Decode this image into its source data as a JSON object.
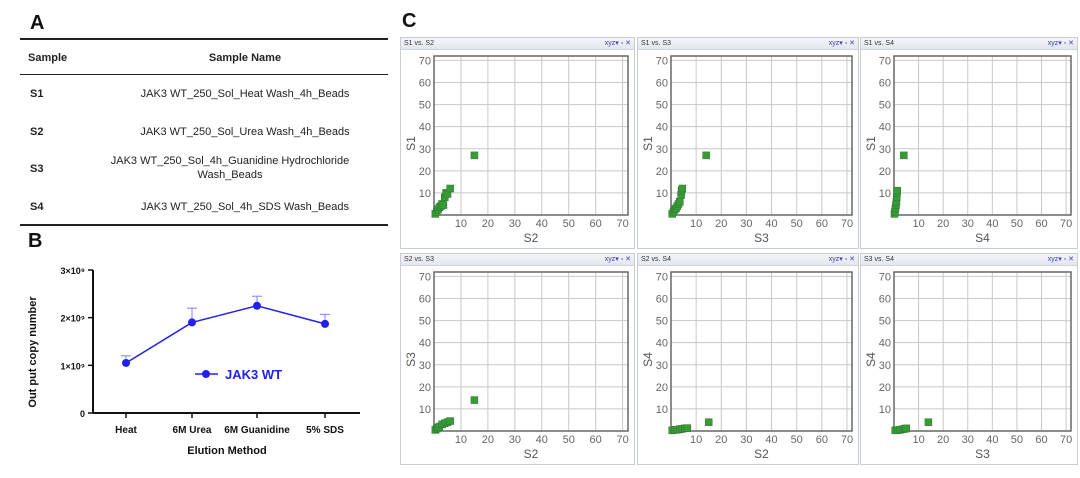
{
  "panel_labels": {
    "a": "A",
    "b": "B",
    "c": "C"
  },
  "table": {
    "headers": [
      "Sample",
      "Sample Name"
    ],
    "rows": [
      {
        "sample": "S1",
        "name": "JAK3 WT_250_Sol_Heat Wash_4h_Beads"
      },
      {
        "sample": "S2",
        "name": "JAK3 WT_250_Sol_Urea Wash_4h_Beads"
      },
      {
        "sample": "S3",
        "name": "JAK3 WT_250_Sol_4h_Guanidine Hydrochloride Wash_Beads"
      },
      {
        "sample": "S4",
        "name": "JAK3 WT_250_Sol_4h_SDS Wash_Beads"
      }
    ]
  },
  "panel_controls": {
    "xyz": "xyz▾",
    "restore": "▫",
    "close": "✕"
  },
  "colors": {
    "line": "#2020f0",
    "marker": "#3a9a3a",
    "marker_edge": "#2a7a2a",
    "grid": "#c8c8c8"
  },
  "chart_data": [
    {
      "type": "line",
      "title": "",
      "xlabel": "Elution Method",
      "ylabel": "Out put copy number",
      "categories": [
        "Heat",
        "6M Urea",
        "6M Guanidine",
        "5% SDS"
      ],
      "series": [
        {
          "name": "JAK3 WT",
          "values": [
            1050000000.0,
            1900000000.0,
            2250000000.0,
            1870000000.0
          ],
          "error_plus": [
            150000000.0,
            300000000.0,
            200000000.0,
            200000000.0
          ]
        }
      ],
      "ylim": [
        0,
        3000000000.0
      ],
      "yticks": [
        0,
        1000000000.0,
        2000000000.0,
        3000000000.0
      ],
      "ytick_labels": [
        "0",
        "1×10⁹",
        "2×10⁹",
        "3×10⁹"
      ],
      "legend": "center"
    },
    {
      "type": "scatter",
      "title": "S1 vs. S2",
      "xlabel": "S2",
      "ylabel": "S1",
      "xlim": [
        0,
        72
      ],
      "ylim": [
        0,
        72
      ],
      "ticks": [
        10,
        20,
        30,
        40,
        50,
        60,
        70
      ],
      "points": [
        [
          0.5,
          0.5
        ],
        [
          1,
          1.5
        ],
        [
          1.5,
          2.5
        ],
        [
          2,
          3.5
        ],
        [
          2.5,
          4
        ],
        [
          3,
          5
        ],
        [
          3.5,
          4.5
        ],
        [
          4,
          8
        ],
        [
          4.5,
          10
        ],
        [
          5,
          9.5
        ],
        [
          6,
          12
        ],
        [
          15,
          27
        ]
      ]
    },
    {
      "type": "scatter",
      "title": "S1 vs. S3",
      "xlabel": "S3",
      "ylabel": "S1",
      "xlim": [
        0,
        72
      ],
      "ylim": [
        0,
        72
      ],
      "ticks": [
        10,
        20,
        30,
        40,
        50,
        60,
        70
      ],
      "points": [
        [
          0.5,
          0.5
        ],
        [
          1,
          1.5
        ],
        [
          1.5,
          2.5
        ],
        [
          2,
          3
        ],
        [
          2.5,
          4
        ],
        [
          3,
          5
        ],
        [
          3.5,
          6
        ],
        [
          4,
          9
        ],
        [
          4.2,
          11
        ],
        [
          4.5,
          12
        ],
        [
          14,
          27
        ]
      ]
    },
    {
      "type": "scatter",
      "title": "S1 vs. S4",
      "xlabel": "S4",
      "ylabel": "S1",
      "xlim": [
        0,
        72
      ],
      "ylim": [
        0,
        72
      ],
      "ticks": [
        10,
        20,
        30,
        40,
        50,
        60,
        70
      ],
      "points": [
        [
          0.2,
          0.5
        ],
        [
          0.4,
          1.5
        ],
        [
          0.6,
          3
        ],
        [
          0.8,
          4.5
        ],
        [
          1,
          6
        ],
        [
          1.1,
          8
        ],
        [
          1.2,
          10
        ],
        [
          1.3,
          11
        ],
        [
          4,
          27
        ]
      ]
    },
    {
      "type": "scatter",
      "title": "S2 vs. S3",
      "xlabel": "S2",
      "ylabel": "S3",
      "xlim": [
        0,
        72
      ],
      "ylim": [
        0,
        72
      ],
      "ticks": [
        10,
        20,
        30,
        40,
        50,
        60,
        70
      ],
      "points": [
        [
          0.5,
          0.5
        ],
        [
          1,
          1
        ],
        [
          1.5,
          1.5
        ],
        [
          2,
          2
        ],
        [
          3,
          3
        ],
        [
          4,
          3.5
        ],
        [
          5,
          4
        ],
        [
          6,
          4.5
        ],
        [
          15,
          14
        ]
      ]
    },
    {
      "type": "scatter",
      "title": "S2 vs. S4",
      "xlabel": "S2",
      "ylabel": "S4",
      "xlim": [
        0,
        72
      ],
      "ylim": [
        0,
        72
      ],
      "ticks": [
        10,
        20,
        30,
        40,
        50,
        60,
        70
      ],
      "points": [
        [
          0.5,
          0.3
        ],
        [
          1.5,
          0.5
        ],
        [
          2.5,
          0.6
        ],
        [
          3.5,
          0.8
        ],
        [
          4.5,
          1
        ],
        [
          5.5,
          1.2
        ],
        [
          6.5,
          1.3
        ],
        [
          15,
          4
        ]
      ]
    },
    {
      "type": "scatter",
      "title": "S3 vs. S4",
      "xlabel": "S3",
      "ylabel": "S4",
      "xlim": [
        0,
        72
      ],
      "ylim": [
        0,
        72
      ],
      "ticks": [
        10,
        20,
        30,
        40,
        50,
        60,
        70
      ],
      "points": [
        [
          0.5,
          0.3
        ],
        [
          1.5,
          0.4
        ],
        [
          2.5,
          0.6
        ],
        [
          3.5,
          0.8
        ],
        [
          4.5,
          1
        ],
        [
          5,
          1.2
        ],
        [
          14,
          4
        ]
      ]
    }
  ]
}
